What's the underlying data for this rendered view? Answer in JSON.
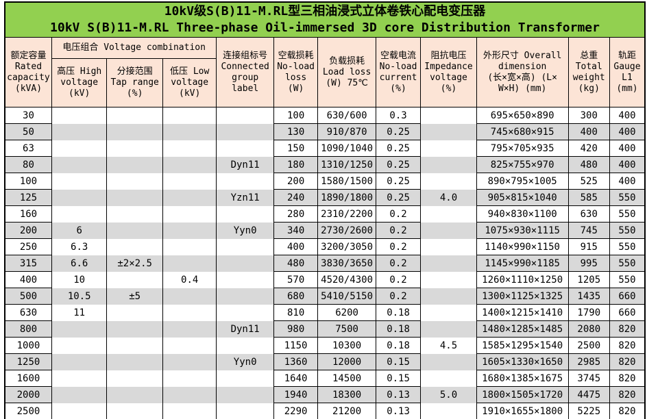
{
  "title": {
    "zh": "10kV级S(B)11-M.RL型三相油浸式立体卷铁心配电变压器",
    "en": "10kV S(B)11-M.RL Three-phase Oil-immersed 3D core Distribution Transformer"
  },
  "colors": {
    "title_bg": "#92D050",
    "header_bg": "#FCE4D6",
    "stripe": "#D9D9D9",
    "border": "#000000"
  },
  "table": {
    "column_keys": [
      "rated_capacity",
      "high_voltage",
      "tap_range",
      "low_voltage",
      "connected_group",
      "no_load_loss",
      "load_loss",
      "no_load_current",
      "impedance_voltage",
      "dimension",
      "total_weight",
      "gauge"
    ],
    "no_horizontal_rule_columns": [
      1,
      2,
      3,
      4,
      8
    ],
    "headers": {
      "rated_capacity": "额定容量\nRated\ncapacity\n(kVA)",
      "voltage_combination": "电压组合 Voltage combination",
      "high_voltage": "高压 High\nvoltage\n(kV)",
      "tap_range": "分接范围\nTap range\n(%)",
      "low_voltage": "低压 Low\nvoltage\n(kV)",
      "connected_group": "连接组标号\nConnected\ngroup\nlabel",
      "no_load_loss": "空载损耗\nNo-load\nloss\n(W)",
      "load_loss": "负载损耗\nLoad loss\n(W) 75℃",
      "no_load_current": "空载电流\nNo-load\ncurrent\n(%)",
      "impedance_voltage": "阻抗电压\nImpedance\nvoltage\n(%)",
      "dimension": "外形尺寸 Overall\ndimension\n(长×宽×高) (L×\nW×H) (mm)",
      "total_weight": "总重\nTotal\nweight\n(kg)",
      "gauge": "轨距\nGauge\nL1\n(mm)"
    },
    "rows": [
      [
        "30",
        "",
        "",
        "",
        "",
        "100",
        "630/600",
        "0.3",
        "",
        "695×650×890",
        "300",
        "400"
      ],
      [
        "50",
        "",
        "",
        "",
        "",
        "130",
        "910/870",
        "0.25",
        "",
        "745×680×915",
        "400",
        "400"
      ],
      [
        "63",
        "",
        "",
        "",
        "",
        "150",
        "1090/1040",
        "0.25",
        "",
        "795×705×935",
        "420",
        "400"
      ],
      [
        "80",
        "",
        "",
        "",
        "Dyn11",
        "180",
        "1310/1250",
        "0.25",
        "",
        "825×755×970",
        "480",
        "400"
      ],
      [
        "100",
        "",
        "",
        "",
        "",
        "200",
        "1580/1500",
        "0.25",
        "",
        "890×795×1005",
        "525",
        "400"
      ],
      [
        "125",
        "",
        "",
        "",
        "Yzn11",
        "240",
        "1890/1800",
        "0.25",
        "4.0",
        "905×815×1040",
        "585",
        "550"
      ],
      [
        "160",
        "",
        "",
        "",
        "",
        "280",
        "2310/2200",
        "0.2",
        "",
        "940×830×1100",
        "630",
        "550"
      ],
      [
        "200",
        "6",
        "",
        "",
        "Yyn0",
        "340",
        "2730/2600",
        "0.2",
        "",
        "1075×930×1115",
        "745",
        "550"
      ],
      [
        "250",
        "6.3",
        "",
        "",
        "",
        "400",
        "3200/3050",
        "0.2",
        "",
        "1140×990×1150",
        "915",
        "550"
      ],
      [
        "315",
        "6.6",
        "±2×2.5",
        "",
        "",
        "480",
        "3830/3650",
        "0.2",
        "",
        "1145×990×1185",
        "995",
        "550"
      ],
      [
        "400",
        "10",
        "",
        "0.4",
        "",
        "570",
        "4520/4300",
        "0.2",
        "",
        "1260×1110×1250",
        "1205",
        "550"
      ],
      [
        "500",
        "10.5",
        "±5",
        "",
        "",
        "680",
        "5410/5150",
        "0.2",
        "",
        "1300×1125×1325",
        "1435",
        "660"
      ],
      [
        "630",
        "11",
        "",
        "",
        "",
        "810",
        "6200",
        "0.18",
        "",
        "1400×1215×1410",
        "1790",
        "660"
      ],
      [
        "800",
        "",
        "",
        "",
        "Dyn11",
        "980",
        "7500",
        "0.18",
        "",
        "1480×1285×1485",
        "2080",
        "820"
      ],
      [
        "1000",
        "",
        "",
        "",
        "",
        "1150",
        "10300",
        "0.18",
        "4.5",
        "1585×1295×1540",
        "2500",
        "820"
      ],
      [
        "1250",
        "",
        "",
        "",
        "Yyn0",
        "1360",
        "12000",
        "0.15",
        "",
        "1605×1330×1650",
        "2985",
        "820"
      ],
      [
        "1600",
        "",
        "",
        "",
        "",
        "1640",
        "14500",
        "0.15",
        "",
        "1680×1385×1675",
        "3745",
        "820"
      ],
      [
        "2000",
        "",
        "",
        "",
        "",
        "1940",
        "18300",
        "0.13",
        "5.0",
        "1800×1505×1720",
        "4475",
        "820"
      ],
      [
        "2500",
        "",
        "",
        "",
        "",
        "2290",
        "21200",
        "0.13",
        "",
        "1910×1655×1800",
        "5225",
        "820"
      ]
    ]
  }
}
